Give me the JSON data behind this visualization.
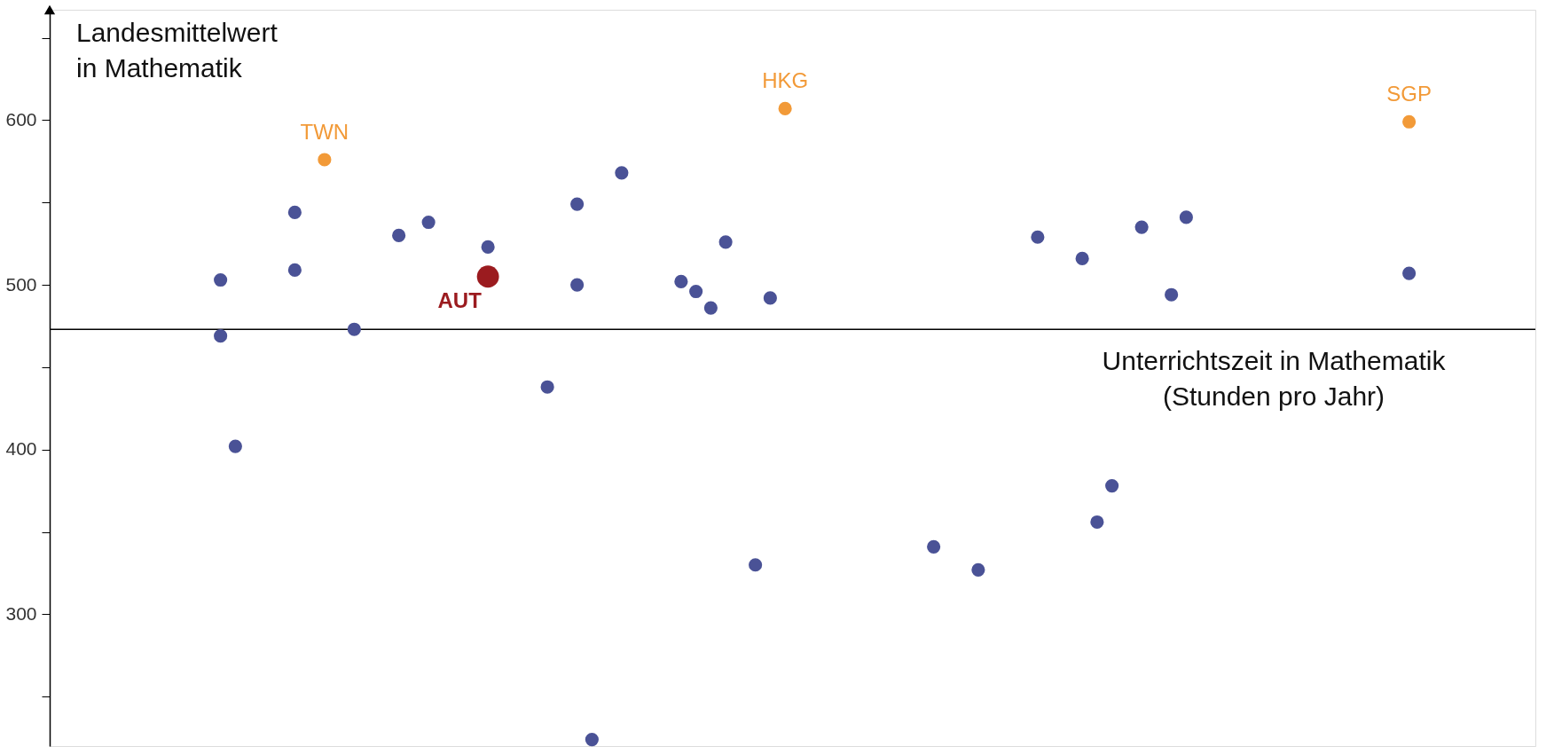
{
  "chart_data": {
    "type": "scatter",
    "xlabel": "Unterrichtszeit in Mathematik\n(Stunden pro Jahr)",
    "ylabel": "Landesmittelwert\nin Mathematik",
    "categories": [
      null,
      null,
      null,
      null,
      null,
      null,
      null,
      null,
      null,
      null,
      null,
      null,
      null,
      null,
      null,
      null,
      null,
      null,
      null,
      null,
      null,
      null,
      null,
      null,
      null,
      null,
      null,
      null,
      null,
      null,
      null,
      null,
      null,
      null,
      null,
      null,
      null,
      null,
      null,
      null,
      null,
      null,
      null,
      null,
      null,
      null,
      null,
      null,
      null,
      null,
      null,
      null,
      null,
      null,
      null,
      null,
      null,
      null,
      null,
      null,
      null,
      null,
      null,
      null,
      null,
      null,
      null,
      null,
      null,
      null,
      null,
      null,
      null,
      null,
      null,
      null,
      null,
      null,
      null,
      null,
      null,
      null,
      null,
      null,
      null,
      null,
      null,
      null,
      null,
      null,
      null,
      null,
      null,
      null,
      null,
      null,
      null,
      null,
      null,
      null
    ],
    "ylim": [
      220,
      667
    ],
    "yticks": [
      {
        "value": 250,
        "label": null
      },
      300,
      {
        "value": 350,
        "label": null
      },
      400,
      {
        "value": 450,
        "label": null
      },
      500,
      {
        "value": 550,
        "label": null
      },
      600,
      {
        "value": 650,
        "label": null
      }
    ],
    "tick_labels": "y",
    "grid": false,
    "legend": false,
    "ref_lines": [
      {
        "axis": "y",
        "value": 473,
        "color": "#000000"
      }
    ],
    "series": [
      {
        "color": "#4a5296",
        "values": [
          null,
          null,
          null,
          null,
          null,
          null,
          null,
          null,
          null,
          null,
          null,
          503,
          402,
          null,
          null,
          null,
          544,
          null,
          null,
          null,
          473,
          null,
          null,
          530,
          null,
          538,
          null,
          null,
          null,
          523,
          null,
          null,
          null,
          438,
          null,
          549,
          224,
          null,
          568,
          null,
          null,
          null,
          502,
          496,
          486,
          526,
          null,
          330,
          492,
          null,
          null,
          null,
          null,
          null,
          null,
          null,
          null,
          null,
          null,
          341,
          null,
          null,
          327,
          null,
          null,
          null,
          529,
          null,
          null,
          516,
          356,
          378,
          null,
          535,
          null,
          494,
          541,
          null,
          null,
          null,
          null,
          null,
          null,
          null,
          null,
          null,
          null,
          null,
          null,
          null,
          null,
          507,
          null,
          null,
          null,
          null,
          null,
          null,
          null,
          null
        ]
      },
      {
        "color": "#4a5296",
        "values": [
          null,
          null,
          null,
          null,
          null,
          null,
          null,
          null,
          null,
          null,
          null,
          469,
          null,
          null,
          null,
          null,
          509,
          null,
          null,
          null,
          null,
          null,
          null,
          null,
          null,
          null,
          null,
          null,
          null,
          null,
          null,
          null,
          null,
          null,
          null,
          500,
          null,
          null,
          null,
          null,
          null,
          null,
          null,
          null,
          null,
          null,
          null,
          null,
          null,
          null,
          null,
          null,
          null,
          null,
          null,
          null,
          null,
          null,
          null,
          null,
          null,
          null,
          null,
          null,
          null,
          null,
          null,
          null,
          null,
          null,
          null,
          null,
          null,
          null,
          null,
          null,
          null,
          null,
          null,
          null,
          null,
          null,
          null,
          null,
          null,
          null,
          null,
          null,
          null,
          null,
          null,
          null,
          null,
          null,
          null,
          null,
          null,
          null,
          null,
          null
        ]
      },
      {
        "name": "TWN",
        "color": "#f29a38",
        "values": [
          null,
          null,
          null,
          null,
          null,
          null,
          null,
          null,
          null,
          null,
          null,
          null,
          null,
          null,
          null,
          null,
          null,
          null,
          576,
          null,
          null,
          null,
          null,
          null,
          null,
          null,
          null,
          null,
          null,
          null,
          null,
          null,
          null,
          null,
          null,
          null,
          null,
          null,
          null,
          null,
          null,
          null,
          null,
          null,
          null,
          null,
          null,
          null,
          null,
          null,
          null,
          null,
          null,
          null,
          null,
          null,
          null,
          null,
          null,
          null,
          null,
          null,
          null,
          null,
          null,
          null,
          null,
          null,
          null,
          null,
          null,
          null,
          null,
          null,
          null,
          null,
          null,
          null,
          null,
          null,
          null,
          null,
          null,
          null,
          null,
          null,
          null,
          null,
          null,
          null,
          null,
          null,
          null,
          null,
          null,
          null,
          null,
          null,
          null,
          null
        ]
      },
      {
        "name": "HKG",
        "color": "#f29a38",
        "values": [
          null,
          null,
          null,
          null,
          null,
          null,
          null,
          null,
          null,
          null,
          null,
          null,
          null,
          null,
          null,
          null,
          null,
          null,
          null,
          null,
          null,
          null,
          null,
          null,
          null,
          null,
          null,
          null,
          null,
          null,
          null,
          null,
          null,
          null,
          null,
          null,
          null,
          null,
          null,
          null,
          null,
          null,
          null,
          null,
          null,
          null,
          null,
          null,
          null,
          607,
          null,
          null,
          null,
          null,
          null,
          null,
          null,
          null,
          null,
          null,
          null,
          null,
          null,
          null,
          null,
          null,
          null,
          null,
          null,
          null,
          null,
          null,
          null,
          null,
          null,
          null,
          null,
          null,
          null,
          null,
          null,
          null,
          null,
          null,
          null,
          null,
          null,
          null,
          null,
          null,
          null,
          null,
          null,
          null,
          null,
          null,
          null,
          null,
          null,
          null
        ]
      },
      {
        "name": "SGP",
        "color": "#f29a38",
        "values": [
          null,
          null,
          null,
          null,
          null,
          null,
          null,
          null,
          null,
          null,
          null,
          null,
          null,
          null,
          null,
          null,
          null,
          null,
          null,
          null,
          null,
          null,
          null,
          null,
          null,
          null,
          null,
          null,
          null,
          null,
          null,
          null,
          null,
          null,
          null,
          null,
          null,
          null,
          null,
          null,
          null,
          null,
          null,
          null,
          null,
          null,
          null,
          null,
          null,
          null,
          null,
          null,
          null,
          null,
          null,
          null,
          null,
          null,
          null,
          null,
          null,
          null,
          null,
          null,
          null,
          null,
          null,
          null,
          null,
          null,
          null,
          null,
          null,
          null,
          null,
          null,
          null,
          null,
          null,
          null,
          null,
          null,
          null,
          null,
          null,
          null,
          null,
          null,
          null,
          null,
          null,
          599,
          null,
          null,
          null,
          null,
          null,
          null,
          null,
          null
        ]
      },
      {
        "name": "AUT",
        "type": "bubble",
        "color": "#9b1b1f",
        "values": [
          null,
          null,
          null,
          null,
          null,
          null,
          null,
          null,
          null,
          null,
          null,
          null,
          null,
          null,
          null,
          null,
          null,
          null,
          null,
          null,
          null,
          null,
          null,
          null,
          null,
          null,
          null,
          null,
          null,
          505,
          null,
          null,
          null,
          null,
          null,
          null,
          null,
          null,
          null,
          null,
          null,
          null,
          null,
          null,
          null,
          null,
          null,
          null,
          null,
          null,
          null,
          null,
          null,
          null,
          null,
          null,
          null,
          null,
          null,
          null,
          null,
          null,
          null,
          null,
          null,
          null,
          null,
          null,
          null,
          null,
          null,
          null,
          null,
          null,
          null,
          null,
          null,
          null,
          null,
          null,
          null,
          null,
          null,
          null,
          null,
          null,
          null,
          null,
          null,
          null,
          null,
          null,
          null,
          null,
          null,
          null,
          null,
          null,
          null,
          null
        ],
        "sizes": [
          null,
          null,
          null,
          null,
          null,
          null,
          null,
          null,
          null,
          null,
          null,
          null,
          null,
          null,
          null,
          null,
          null,
          null,
          null,
          null,
          null,
          null,
          null,
          null,
          null,
          null,
          null,
          null,
          null,
          1,
          null,
          null,
          null,
          null,
          null,
          null,
          null,
          null,
          null,
          null,
          null,
          null,
          null,
          null,
          null,
          null,
          null,
          null,
          null,
          null,
          null,
          null,
          null,
          null,
          null,
          null,
          null,
          null,
          null,
          null,
          null,
          null,
          null,
          null,
          null,
          null,
          null,
          null,
          null,
          null,
          null,
          null,
          null,
          null,
          null,
          null,
          null,
          null,
          null,
          null,
          null,
          null,
          null,
          null,
          null,
          null,
          null,
          null,
          null,
          null,
          null,
          null,
          null,
          null,
          null,
          null,
          null,
          null,
          null,
          null
        ]
      }
    ]
  }
}
